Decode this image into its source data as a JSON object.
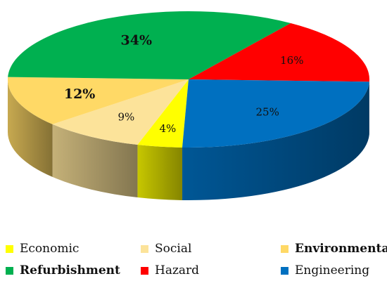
{
  "chart_data": {
    "type": "pie",
    "style": "3d",
    "title": "",
    "slices": [
      {
        "label": "Economic",
        "value": 4,
        "display": "4%",
        "color": "#FFFF00",
        "bold": false
      },
      {
        "label": "Social",
        "value": 9,
        "display": "9%",
        "color": "#FCE39A",
        "bold": false
      },
      {
        "label": "Environmental",
        "value": 12,
        "display": "12%",
        "color": "#FFD966",
        "bold": true
      },
      {
        "label": "Refurbishment",
        "value": 34,
        "display": "34%",
        "color": "#00B050",
        "bold": true
      },
      {
        "label": "Hazard",
        "value": 16,
        "display": "16%",
        "color": "#FF0000",
        "bold": false
      },
      {
        "label": "Engineering",
        "value": 25,
        "display": "25%",
        "color": "#0070C0",
        "bold": false
      }
    ],
    "legend_placement": "bottom"
  }
}
